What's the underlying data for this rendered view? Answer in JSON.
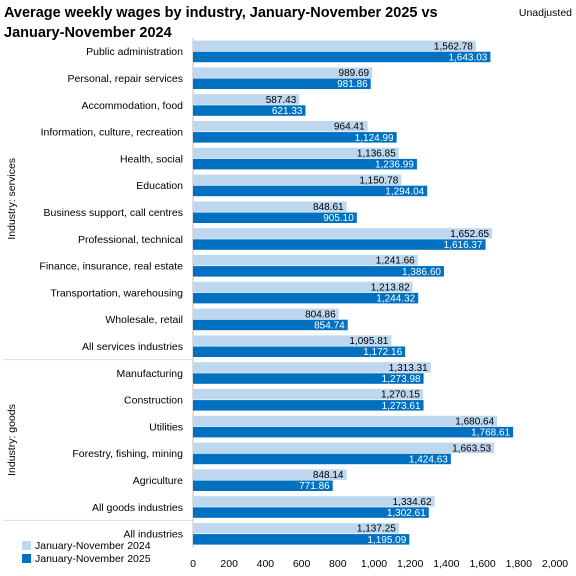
{
  "chart_data": {
    "type": "bar",
    "orientation": "horizontal",
    "title_line1": "Average weekly wages by industry, January-November 2025 vs",
    "title_line2": "January-November 2024",
    "note": "Unadjusted",
    "groups": [
      {
        "label": "Industry: services",
        "first": 0,
        "last": 11
      },
      {
        "label": "Industry: goods",
        "first": 12,
        "last": 17
      }
    ],
    "categories": [
      "Public administration",
      "Personal, repair services",
      "Accommodation, food",
      "Information, culture, recreation",
      "Health, social",
      "Education",
      "Business support, call centres",
      "Professional, technical",
      "Finance, insurance, real estate",
      "Transportation, warehousing",
      "Wholesale, retail",
      "All services industries",
      "Manufacturing",
      "Construction",
      "Utilities",
      "Forestry, fishing, mining",
      "Agriculture",
      "All goods industries",
      "All industries"
    ],
    "series": [
      {
        "name": "January-November 2024",
        "color": "#bdd7ee",
        "values": [
          1562.78,
          989.69,
          587.43,
          964.41,
          1136.85,
          1150.78,
          848.61,
          1652.65,
          1241.66,
          1213.82,
          804.86,
          1095.81,
          1313.31,
          1270.15,
          1680.64,
          1663.53,
          848.14,
          1334.62,
          1137.25
        ]
      },
      {
        "name": "January-November 2025",
        "color": "#0070c0",
        "values": [
          1643.03,
          981.86,
          621.33,
          1124.99,
          1236.99,
          1294.04,
          905.1,
          1616.37,
          1386.6,
          1244.32,
          854.74,
          1172.16,
          1273.98,
          1273.61,
          1768.61,
          1424.63,
          771.86,
          1302.61,
          1195.09
        ]
      }
    ],
    "xlim": [
      0,
      2000
    ],
    "xticks": [
      0,
      200,
      400,
      600,
      800,
      1000,
      1200,
      1400,
      1600,
      1800,
      2000
    ],
    "grid": false,
    "legend_position": "bottom-left"
  }
}
